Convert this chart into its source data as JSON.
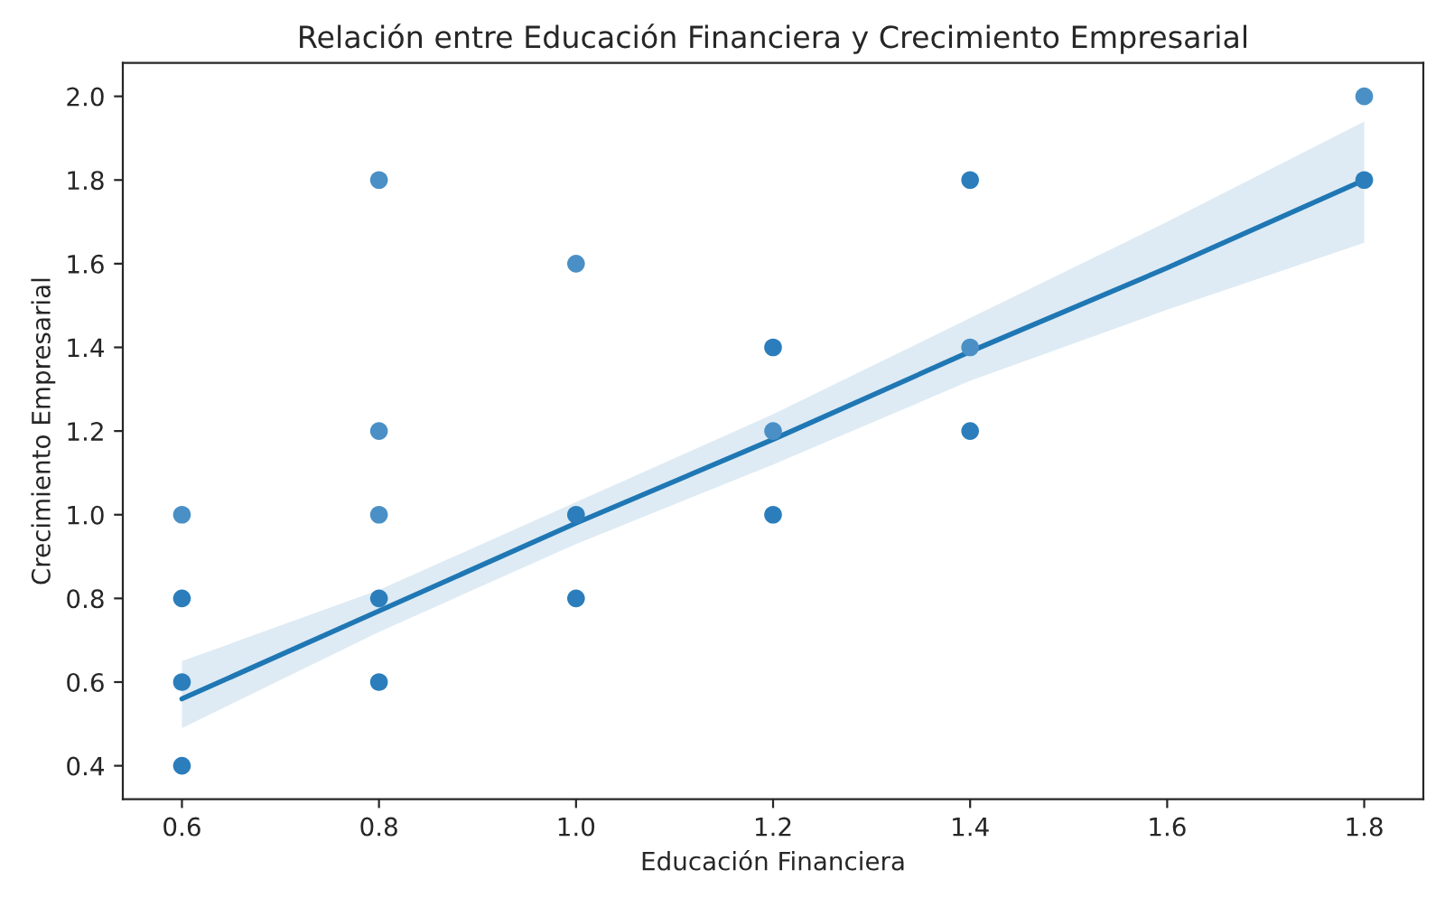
{
  "chart_data": {
    "type": "scatter",
    "title": "Relación entre Educación Financiera y Crecimiento Empresarial",
    "xlabel": "Educación Financiera",
    "ylabel": "Crecimiento Empresarial",
    "xlim": [
      0.54,
      1.86
    ],
    "ylim": [
      0.32,
      2.08
    ],
    "xticks": [
      0.6,
      0.8,
      {
        "value": 1,
        "label": "1.0"
      },
      1.2,
      1.4,
      1.6,
      1.8
    ],
    "yticks": [
      0.4,
      0.6,
      0.8,
      {
        "value": 1,
        "label": "1.0"
      },
      1.2,
      1.4,
      1.6,
      1.8,
      {
        "value": 2,
        "label": "2.0"
      }
    ],
    "grid": false,
    "series": [
      {
        "type": "scatter",
        "marker": "circle",
        "x": [
          0.6,
          0.6,
          0.6,
          0.6,
          0.8,
          0.8,
          0.8,
          0.8,
          0.8,
          1.0,
          1.0,
          1.0,
          1.2,
          1.2,
          1.2,
          1.4,
          1.4,
          1.4,
          1.8,
          1.8
        ],
        "values": [
          1.0,
          0.8,
          0.6,
          0.4,
          1.8,
          1.2,
          1.0,
          0.8,
          0.6,
          1.6,
          1.0,
          0.8,
          1.4,
          1.2,
          1.0,
          1.8,
          1.4,
          1.2,
          2.0,
          1.8
        ],
        "colors": [
          "#4a90c6",
          "#2b7ebb",
          "#2b7ebb",
          "#2b7ebb",
          "#4a90c6",
          "#4a90c6",
          "#4a90c6",
          "#2b7ebb",
          "#2b7ebb",
          "#4a90c6",
          "#2b7ebb",
          "#2b7ebb",
          "#2b7ebb",
          "#4a90c6",
          "#2b7ebb",
          "#2b7ebb",
          "#4a90c6",
          "#2b7ebb",
          "#4a90c6",
          "#2b7ebb"
        ]
      },
      {
        "type": "line",
        "color": "#1f77b4",
        "x": [
          0.6,
          0.8,
          1.0,
          1.2,
          1.4,
          1.6,
          1.8
        ],
        "values": [
          0.56,
          0.77,
          0.98,
          1.18,
          1.39,
          1.59,
          1.8
        ],
        "lower": [
          0.49,
          0.72,
          0.93,
          1.12,
          1.32,
          1.49,
          1.65
        ],
        "upper": [
          0.65,
          0.82,
          1.03,
          1.24,
          1.47,
          1.7,
          1.94
        ]
      }
    ]
  }
}
